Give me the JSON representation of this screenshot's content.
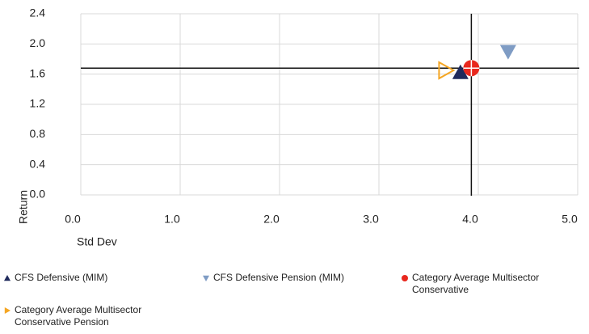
{
  "chart_data": {
    "type": "scatter",
    "x_label": "Std Dev",
    "y_label": "Return",
    "xlim": [
      0,
      5
    ],
    "xticks": [
      {
        "value": 0,
        "label": "0.0"
      },
      {
        "value": 1,
        "label": "1.0"
      },
      {
        "value": 2,
        "label": "2.0"
      },
      {
        "value": 3,
        "label": "3.0"
      },
      {
        "value": 4,
        "label": "4.0"
      },
      {
        "value": 5,
        "label": "5.0"
      }
    ],
    "ylim": [
      0,
      2.4
    ],
    "yticks": [
      {
        "value": 0,
        "label": "0.0"
      },
      0.4,
      0.8,
      1.2,
      1.6,
      {
        "value": 2,
        "label": "2.0"
      },
      2.4
    ],
    "grid": true,
    "series": [
      {
        "name": "CFS Defensive (MIM)",
        "color": "#1f2a5c",
        "marker": "triangle-up",
        "x": [
          3.82
        ],
        "values": [
          1.62
        ]
      },
      {
        "name": "CFS Defensive Pension (MIM)",
        "color": "#7f9cc4",
        "marker": "triangle-down",
        "x": [
          4.3
        ],
        "values": [
          1.9
        ]
      },
      {
        "name": "Category Average Multisector Conservative",
        "color": "#e8281e",
        "marker": "circle-cross",
        "x": [
          3.93
        ],
        "values": [
          1.68
        ]
      },
      {
        "name": "Category Average Multisector Conservative Pension",
        "color": "#f5a623",
        "marker": "triangle-right-open",
        "x": [
          3.67
        ],
        "values": [
          1.65
        ]
      }
    ]
  }
}
